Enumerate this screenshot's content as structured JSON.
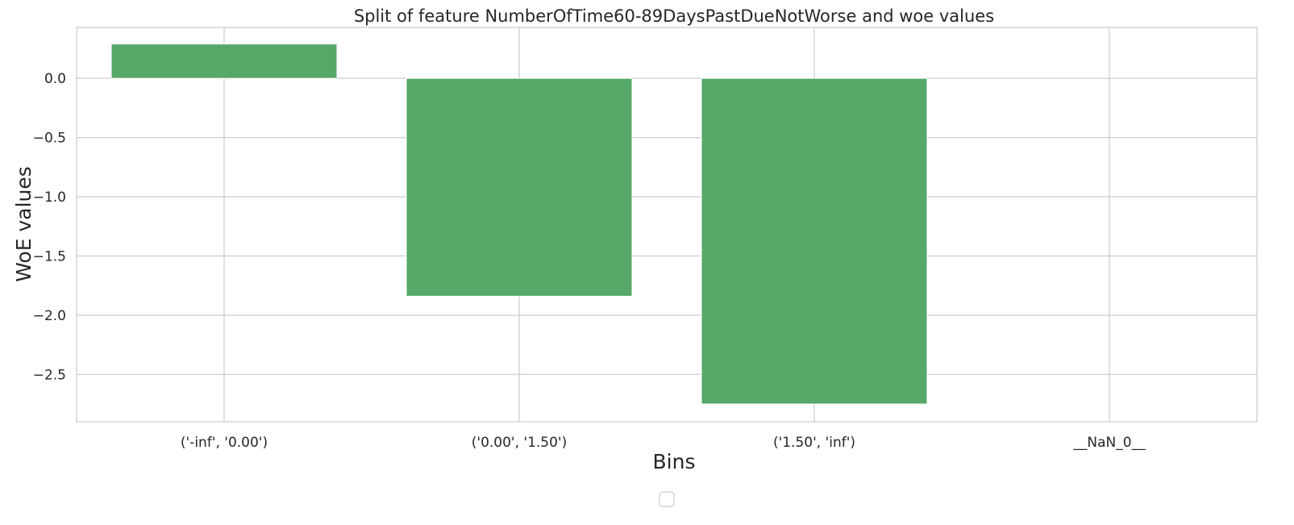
{
  "chart_data": {
    "type": "bar",
    "title": "Split of feature NumberOfTime60-89DaysPastDueNotWorse and woe values",
    "xlabel": "Bins",
    "ylabel": "WoE values",
    "categories": [
      "('-inf', '0.00')",
      "('0.00', '1.50')",
      "('1.50', 'inf')",
      "__NaN_0__"
    ],
    "values": [
      0.29,
      -1.84,
      -2.75,
      0.0
    ],
    "ylim": [
      -2.9,
      0.43
    ],
    "yticks": [
      0.0,
      -0.5,
      -1.0,
      -1.5,
      -2.0,
      -2.5
    ],
    "ytick_labels": [
      "0.0",
      "−0.5",
      "−1.0",
      "−1.5",
      "−2.0",
      "−2.5"
    ],
    "grid": true,
    "legend": "bottom-center (empty)",
    "colors": {
      "bar": "#55a868",
      "grid": "#cccccc",
      "spine": "#cccccc",
      "text": "#262626",
      "background": "#ffffff"
    }
  }
}
